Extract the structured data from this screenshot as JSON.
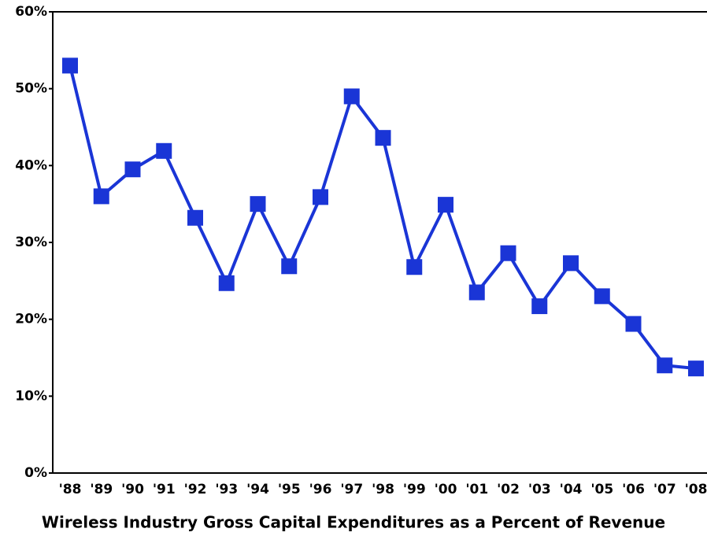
{
  "chart_data": {
    "type": "line",
    "title": "Wireless Industry Gross Capital Expenditures as a Percent of Revenue",
    "categories": [
      "'88",
      "'89",
      "'90",
      "'91",
      "'92",
      "'93",
      "'94",
      "'95",
      "'96",
      "'97",
      "'98",
      "'99",
      "'00",
      "'01",
      "'02",
      "'03",
      "'04",
      "'05",
      "'06",
      "'07",
      "'08"
    ],
    "series": [
      {
        "name": "Capital Expenditures",
        "color": "#1a35d6",
        "values": [
          53.0,
          36.0,
          39.5,
          41.9,
          33.2,
          24.7,
          35.0,
          26.9,
          35.9,
          49.0,
          43.6,
          26.8,
          34.9,
          23.5,
          28.6,
          21.7,
          27.3,
          23.0,
          19.4,
          14.0,
          13.6
        ]
      }
    ],
    "ylim": [
      0,
      60
    ],
    "yticks": [
      {
        "value": 0,
        "label": "0%"
      },
      {
        "value": 10,
        "label": "10%"
      },
      {
        "value": 20,
        "label": "20%"
      },
      {
        "value": 30,
        "label": "30%"
      },
      {
        "value": 40,
        "label": "40%"
      },
      {
        "value": 50,
        "label": "50%"
      },
      {
        "value": 60,
        "label": "60%"
      }
    ],
    "grid": false
  }
}
